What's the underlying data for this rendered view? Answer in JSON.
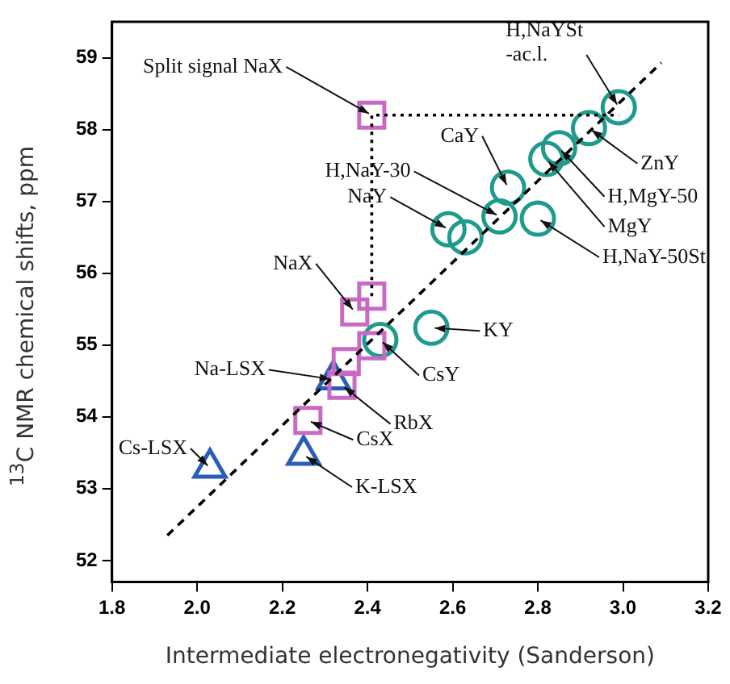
{
  "chart_data": {
    "type": "scatter",
    "xlabel": "Intermediate electronegativity (Sanderson)",
    "ylabel": "$^{13}$C NMR chemical shifts, ppm",
    "xlim": [
      1.8,
      3.2
    ],
    "ylim": [
      51.7,
      59.5
    ],
    "xticks": [
      1.8,
      {
        "value": 2.0,
        "label": "2.0"
      },
      2.2,
      2.4,
      2.6,
      2.8,
      {
        "value": 3.0,
        "label": "3.0"
      },
      3.2
    ],
    "yticks": [
      52,
      53,
      54,
      55,
      56,
      57,
      58,
      59
    ],
    "grid": false,
    "legend": false,
    "series": [
      {
        "type": "line",
        "color": "#000000",
        "marker": "none",
        "line_style": "dashed",
        "x": [
          1.93,
          3.09
        ],
        "values": [
          52.35,
          58.93
        ]
      },
      {
        "type": "line",
        "color": "#000000",
        "marker": "none",
        "line_style": "dotted",
        "x": [
          2.41,
          2.41,
          2.99
        ],
        "values": [
          55.68,
          58.2,
          58.2
        ]
      },
      {
        "color": "#c86ac4",
        "marker": "square",
        "x": [
          2.41,
          2.41,
          2.37,
          2.41,
          2.35,
          2.34,
          2.26
        ],
        "values": [
          58.2,
          55.68,
          55.46,
          54.99,
          54.77,
          54.44,
          53.95
        ]
      },
      {
        "color": "#1f9b8e",
        "marker": "circle",
        "x": [
          2.43,
          2.55,
          2.59,
          2.63,
          2.71,
          2.73,
          2.8,
          2.82,
          2.85,
          2.92,
          2.99
        ],
        "values": [
          55.07,
          55.24,
          56.61,
          56.5,
          56.79,
          57.19,
          56.76,
          57.59,
          57.74,
          58.02,
          58.31
        ]
      },
      {
        "color": "#2a5db5",
        "marker": "triangle",
        "x": [
          2.32,
          2.25,
          2.03
        ],
        "values": [
          54.52,
          53.47,
          53.29
        ]
      }
    ],
    "annotations": [
      {
        "text": "Split signal NaX",
        "x": 2.41,
        "y": 58.2
      },
      {
        "text": "H,NaYSt\n-ac.l.",
        "x": 2.99,
        "y": 58.31
      },
      {
        "text": "ZnY",
        "x": 2.92,
        "y": 58.02
      },
      {
        "text": "CaY",
        "x": 2.73,
        "y": 57.19
      },
      {
        "text": "H,MgY-50",
        "x": 2.85,
        "y": 57.74
      },
      {
        "text": "H,NaY-30",
        "x": 2.71,
        "y": 56.79
      },
      {
        "text": "MgY",
        "x": 2.82,
        "y": 57.59
      },
      {
        "text": "NaY",
        "x": 2.59,
        "y": 56.61
      },
      {
        "text": "H,NaY-50St",
        "x": 2.8,
        "y": 56.76
      },
      {
        "text": "NaX",
        "x": 2.37,
        "y": 55.46
      },
      {
        "text": "KY",
        "x": 2.55,
        "y": 55.24
      },
      {
        "text": "CsY",
        "x": 2.43,
        "y": 55.07
      },
      {
        "text": "Na-LSX",
        "x": 2.32,
        "y": 54.52
      },
      {
        "text": "RbX",
        "x": 2.34,
        "y": 54.44
      },
      {
        "text": "CsX",
        "x": 2.26,
        "y": 53.95
      },
      {
        "text": "Cs-LSX",
        "x": 2.03,
        "y": 53.29
      },
      {
        "text": "K-LSX",
        "x": 2.25,
        "y": 53.47
      }
    ]
  }
}
